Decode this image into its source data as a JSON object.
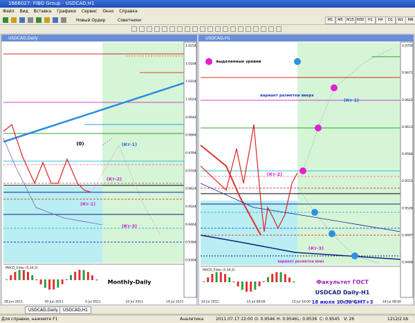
{
  "window": {
    "title": "1666027: FIBO Group - USDCAD,H1"
  },
  "menu": [
    "Файл",
    "Вид",
    "Вставка",
    "Графики",
    "Сервис",
    "Окно",
    "Справка"
  ],
  "toolbar": {
    "new_order": "Новый Ордер",
    "experts": "Советники",
    "timeframes": [
      "M1",
      "M5",
      "M15",
      "M30",
      "H1",
      "H4",
      "D1",
      "W1",
      "MN"
    ]
  },
  "charts": [
    {
      "title": "USDCAD,Daily",
      "price_labels": [
        "1.0254",
        "1.0184",
        "1.0104",
        "1.0024",
        "0.9944",
        "0.9864",
        "0.9784",
        "0.9704",
        "0.9624",
        "0.9544",
        "0.9464",
        "0.9384",
        "0.9304"
      ],
      "date_labels": [
        "28 Jun 2011",
        "30 Jun 2011",
        "5 Jul 2011",
        "10 Jul 2011",
        "14 Jul 2011"
      ],
      "indicator": "MACD_Elder (5,34,5)",
      "annotations": [
        "(0)",
        "(Кт-1)",
        "(Кт-2)",
        "(Кт-1)",
        "(Кт-3)",
        "Monthly-Daily"
      ]
    },
    {
      "title": "USDCAD,H1",
      "price_labels": [
        "0.9700",
        "0.9671",
        "0.9642",
        "0.9613",
        "0.9584",
        "0.9555",
        "0.9526",
        "0.9497",
        "0.9468"
      ],
      "date_labels": [
        "14 Jul 2011",
        "15 Jul 08:00",
        "15 Jul 16:00",
        "18 Jul 00:00",
        "18 Jul 08:00"
      ],
      "indicator": "MACD_Elder (5,34,5)",
      "annotations": [
        "выделенные уровни",
        "вариант разметки вверх",
        "(Кт-1)",
        "(Кт-2)",
        "(Кт-3)",
        "вариант разметки вниз",
        "Факультет ГОСТ",
        "USDCAD Daily-H1",
        "18 июля 10:30 GMT+3"
      ]
    }
  ],
  "tabs": [
    "USDCAD,Daily",
    "USDCAD,H1"
  ],
  "status": [
    "Для справки, нажмите F1",
    "Аналитика",
    "2011.07.17 22:00",
    "O: 0.9546",
    "H: 0.9546",
    "L: 0.9536",
    "C: 0.9545",
    "V: 26",
    "1212/2 kb"
  ]
}
